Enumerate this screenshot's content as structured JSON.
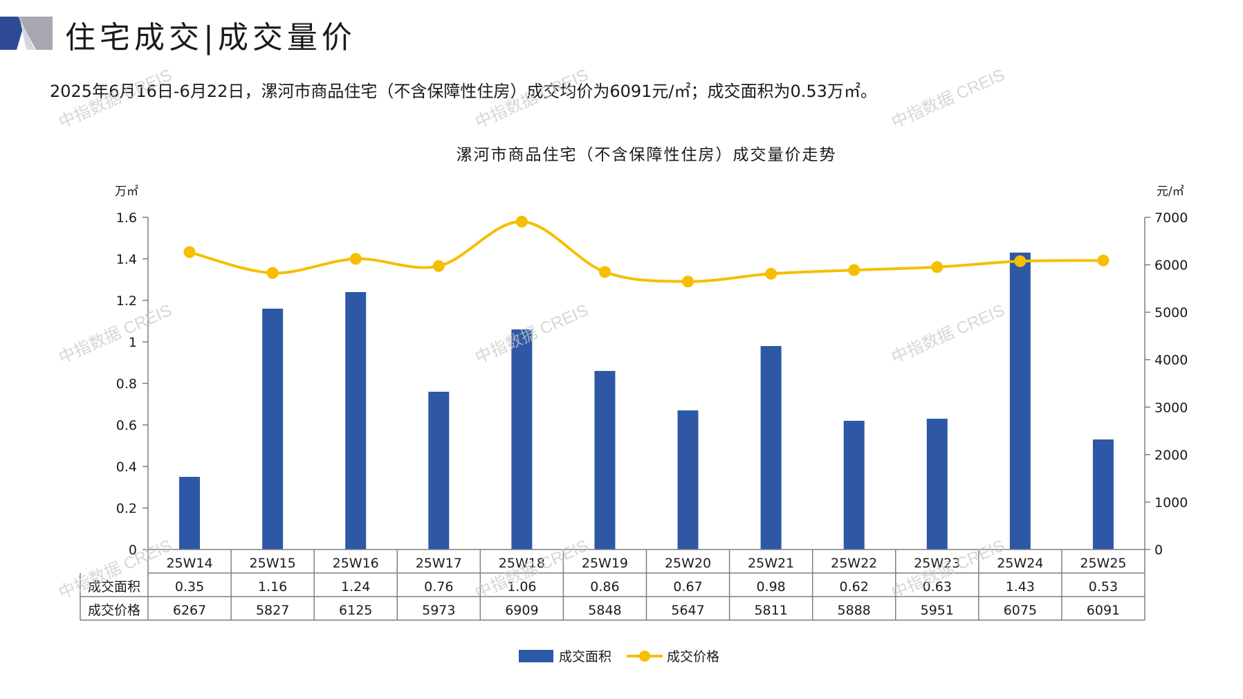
{
  "header": {
    "title": "住宅成交|成交量价",
    "summary": "2025年6月16日-6月22日，漯河市商品住宅（不含保障性住房）成交均价为6091元/㎡；成交面积为0.53万㎡。"
  },
  "watermark_text": "中指数据 CREIS",
  "colors": {
    "bar": "#2E58A6",
    "line": "#F5BE00",
    "grid": "#7f7f7f",
    "deco_dark": "#2E4A96",
    "deco_light": "#A8A8B0"
  },
  "chart_data": {
    "type": "bar",
    "title": "漯河市商品住宅（不含保障性住房）成交量价走势",
    "categories": [
      "25W14",
      "25W15",
      "25W16",
      "25W17",
      "25W18",
      "25W19",
      "25W20",
      "25W21",
      "25W22",
      "25W23",
      "25W24",
      "25W25"
    ],
    "series": [
      {
        "name": "成交面积",
        "type": "bar",
        "axis": "left",
        "values": [
          0.35,
          1.16,
          1.24,
          0.76,
          1.06,
          0.86,
          0.67,
          0.98,
          0.62,
          0.63,
          1.43,
          0.53
        ],
        "labels": [
          "0.35",
          "1.16",
          "1.24",
          "0.76",
          "1.06",
          "0.86",
          "0.67",
          "0.98",
          "0.62",
          "0.63",
          "1.43",
          "0.53"
        ]
      },
      {
        "name": "成交价格",
        "type": "line",
        "axis": "right",
        "values": [
          6267,
          5827,
          6125,
          5973,
          6909,
          5848,
          5647,
          5811,
          5888,
          5951,
          6075,
          6091
        ],
        "labels": [
          "6267",
          "5827",
          "6125",
          "5973",
          "6909",
          "5848",
          "5647",
          "5811",
          "5888",
          "5951",
          "6075",
          "6091"
        ]
      }
    ],
    "left_axis": {
      "unit": "万㎡",
      "ylim": [
        0,
        1.6
      ],
      "ticks": [
        "0",
        "0.2",
        "0.4",
        "0.6",
        "0.8",
        "1",
        "1.2",
        "1.4",
        "1.6"
      ]
    },
    "right_axis": {
      "unit": "元/㎡",
      "ylim": [
        0,
        7000
      ],
      "ticks": [
        "0",
        "1000",
        "2000",
        "3000",
        "4000",
        "5000",
        "6000",
        "7000"
      ]
    },
    "legend_position": "bottom-center",
    "data_table": true
  }
}
